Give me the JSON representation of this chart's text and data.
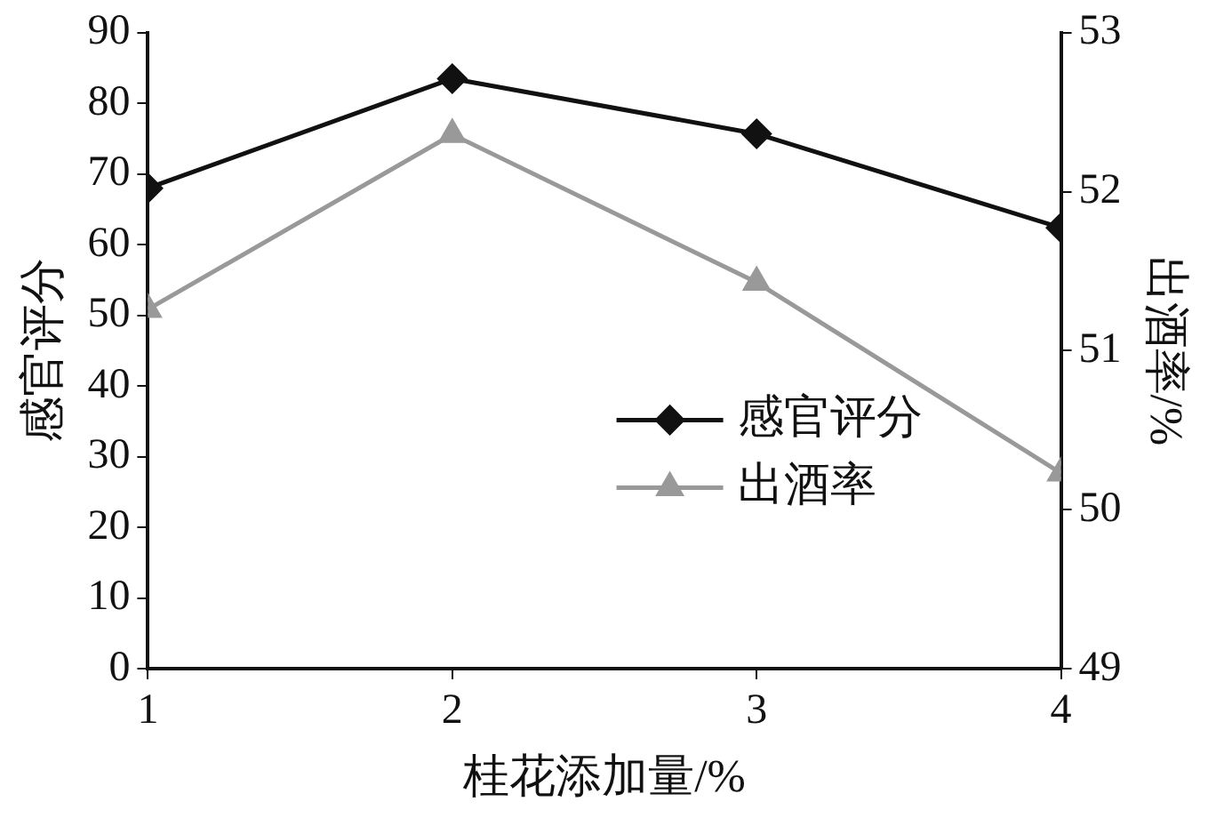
{
  "chart_data": {
    "type": "line",
    "xlabel": "桂花添加量/%",
    "ylabel": "感官评分",
    "y2label": "出酒率/%",
    "x": [
      1,
      2,
      3,
      4
    ],
    "xlim": [
      1,
      4
    ],
    "xticks": [
      1,
      2,
      3,
      4
    ],
    "ylim": [
      0,
      90
    ],
    "yticks": [
      0,
      10,
      20,
      30,
      40,
      50,
      60,
      70,
      80,
      90
    ],
    "y2lim": [
      49,
      53
    ],
    "y2ticks": [
      49,
      50,
      51,
      52,
      53
    ],
    "series": [
      {
        "name": "感官评分",
        "color": "#111111",
        "marker": "diamond",
        "values": [
          68,
          83.5,
          75.7,
          62.4
        ]
      },
      {
        "name": "出酒率",
        "color": "#999999",
        "marker": "triangle",
        "axis": "y2",
        "values": [
          51.26,
          52.36,
          51.43,
          50.23
        ]
      }
    ],
    "legend": "center right",
    "grid": false,
    "line_style": "solid"
  }
}
